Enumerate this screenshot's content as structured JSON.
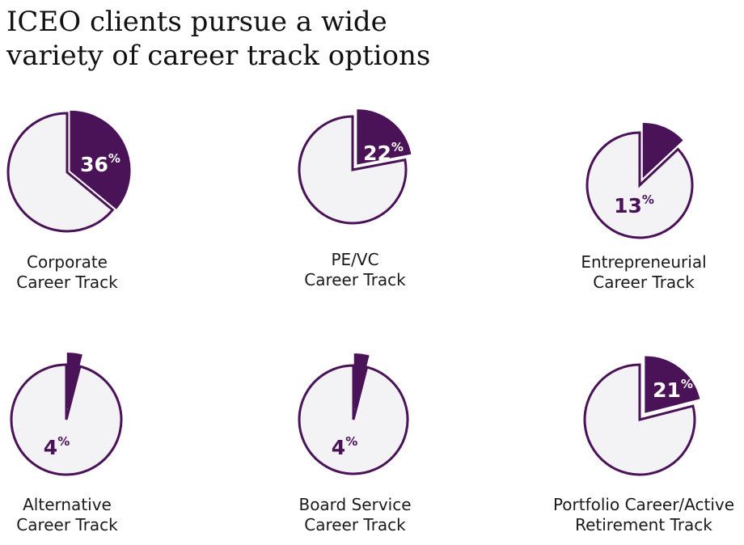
{
  "title": {
    "line1": "ICEO clients pursue a wide",
    "line2": "variety of career track options"
  },
  "colors": {
    "accent": "#4a1358",
    "pie_fill": "#f3f2f5"
  },
  "chart_data": [
    {
      "type": "pie",
      "value": 36,
      "value_label": "36",
      "unit": "%",
      "label_lines": [
        "Corporate",
        "Career Track"
      ]
    },
    {
      "type": "pie",
      "value": 22,
      "value_label": "22",
      "unit": "%",
      "label_lines": [
        "PE/VC",
        "Career Track"
      ]
    },
    {
      "type": "pie",
      "value": 13,
      "value_label": "13",
      "unit": "%",
      "label_lines": [
        "Entrepreneurial",
        "Career Track"
      ]
    },
    {
      "type": "pie",
      "value": 4,
      "value_label": "4",
      "unit": "%",
      "label_lines": [
        "Alternative",
        "Career Track"
      ]
    },
    {
      "type": "pie",
      "value": 4,
      "value_label": "4",
      "unit": "%",
      "label_lines": [
        "Board Service",
        "Career Track"
      ]
    },
    {
      "type": "pie",
      "value": 21,
      "value_label": "21",
      "unit": "%",
      "label_lines": [
        "Portfolio Career/Active",
        "Retirement Track"
      ]
    }
  ]
}
